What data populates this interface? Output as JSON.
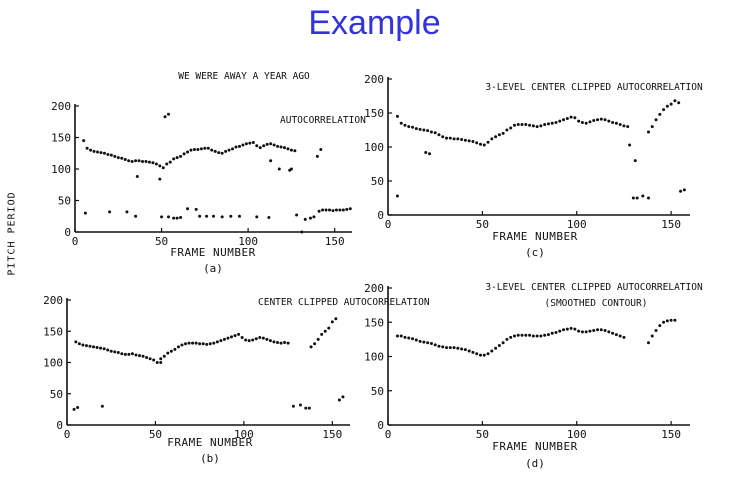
{
  "slide": {
    "title": "Example",
    "shared_ylabel": "PITCH PERIOD"
  },
  "chart_data": [
    {
      "type": "scatter",
      "panel_label": "(a)",
      "top_label": "WE WERE AWAY A YEAR AGO",
      "annotations": [
        "AUTOCORRELATION"
      ],
      "xlabel": "FRAME NUMBER",
      "xlim": [
        0,
        160
      ],
      "ylim": [
        0,
        200
      ],
      "xticks": [
        0,
        50,
        100,
        150
      ],
      "yticks": [
        0,
        50,
        100,
        150,
        200
      ],
      "series": [
        {
          "x": [
            5,
            7,
            9,
            11,
            13,
            15,
            17,
            19,
            21,
            23,
            25,
            27,
            29,
            31,
            33,
            35,
            37,
            39,
            41,
            43,
            45,
            47,
            49,
            51,
            53,
            55,
            57,
            59,
            61,
            63,
            65,
            67,
            69,
            71,
            73,
            75,
            77,
            79,
            81,
            83,
            85,
            87,
            89,
            91,
            93,
            95,
            97,
            99,
            101,
            103,
            105,
            107,
            109,
            111,
            113,
            115,
            117,
            119,
            121,
            123,
            125,
            127,
            6,
            20,
            30,
            35,
            50,
            54,
            57,
            59,
            61,
            65,
            70,
            72,
            76,
            80,
            85,
            90,
            95,
            105,
            112,
            128,
            131,
            133,
            136,
            138,
            141,
            143,
            145,
            147,
            149,
            151,
            153,
            155,
            157,
            159,
            52,
            54,
            140,
            142,
            113,
            36,
            49,
            118,
            124,
            125
          ],
          "y": [
            145,
            133,
            130,
            128,
            127,
            126,
            125,
            123,
            122,
            120,
            118,
            117,
            115,
            113,
            112,
            113,
            113,
            112,
            112,
            111,
            110,
            108,
            105,
            102,
            108,
            111,
            116,
            118,
            120,
            124,
            127,
            130,
            131,
            131,
            132,
            133,
            133,
            130,
            128,
            126,
            125,
            128,
            130,
            132,
            135,
            136,
            138,
            140,
            141,
            142,
            137,
            134,
            137,
            139,
            140,
            138,
            136,
            135,
            134,
            132,
            130,
            129,
            30,
            32,
            32,
            25,
            24,
            24,
            22,
            22,
            23,
            37,
            36,
            25,
            25,
            25,
            24,
            25,
            25,
            24,
            23,
            27,
            0,
            20,
            22,
            24,
            33,
            35,
            35,
            35,
            34,
            35,
            35,
            35,
            36,
            37,
            183,
            187,
            120,
            131,
            113,
            88,
            84,
            100,
            98,
            100
          ]
        }
      ]
    },
    {
      "type": "scatter",
      "panel_label": "(b)",
      "annotations": [
        "CENTER CLIPPED AUTOCORRELATION"
      ],
      "xlabel": "FRAME NUMBER",
      "xlim": [
        0,
        160
      ],
      "ylim": [
        0,
        200
      ],
      "xticks": [
        0,
        50,
        100,
        150
      ],
      "yticks": [
        0,
        50,
        100,
        150,
        200
      ],
      "series": [
        {
          "x": [
            5,
            7,
            9,
            11,
            13,
            15,
            17,
            19,
            21,
            23,
            25,
            27,
            29,
            31,
            33,
            35,
            37,
            39,
            41,
            43,
            45,
            47,
            49,
            51,
            53,
            55,
            57,
            59,
            61,
            63,
            65,
            67,
            69,
            71,
            73,
            75,
            77,
            79,
            81,
            83,
            85,
            87,
            89,
            91,
            93,
            95,
            97,
            99,
            101,
            103,
            105,
            107,
            109,
            111,
            113,
            115,
            117,
            119,
            121,
            123,
            125,
            138,
            140,
            142,
            144,
            146,
            148,
            150,
            152,
            4,
            6,
            20,
            53,
            128,
            132,
            135,
            137,
            154,
            156
          ],
          "y": [
            133,
            130,
            128,
            127,
            126,
            125,
            124,
            123,
            122,
            120,
            118,
            117,
            116,
            114,
            113,
            113,
            114,
            112,
            111,
            110,
            108,
            106,
            104,
            100,
            106,
            110,
            115,
            118,
            121,
            125,
            128,
            130,
            131,
            131,
            131,
            130,
            130,
            129,
            130,
            131,
            133,
            135,
            137,
            139,
            141,
            143,
            145,
            140,
            136,
            135,
            136,
            138,
            140,
            139,
            137,
            135,
            133,
            132,
            131,
            132,
            131,
            125,
            130,
            137,
            145,
            150,
            155,
            165,
            170,
            25,
            28,
            30,
            100,
            30,
            32,
            27,
            27,
            40,
            45
          ]
        }
      ]
    },
    {
      "type": "scatter",
      "panel_label": "(c)",
      "annotations": [
        "3-LEVEL CENTER CLIPPED AUTOCORRELATION"
      ],
      "xlabel": "FRAME NUMBER",
      "xlim": [
        0,
        160
      ],
      "ylim": [
        0,
        200
      ],
      "xticks": [
        0,
        50,
        100,
        150
      ],
      "yticks": [
        0,
        50,
        100,
        150,
        200
      ],
      "series": [
        {
          "x": [
            5,
            7,
            9,
            11,
            13,
            15,
            17,
            19,
            21,
            23,
            25,
            27,
            29,
            31,
            33,
            35,
            37,
            39,
            41,
            43,
            45,
            47,
            49,
            51,
            53,
            55,
            57,
            59,
            61,
            63,
            65,
            67,
            69,
            71,
            73,
            75,
            77,
            79,
            81,
            83,
            85,
            87,
            89,
            91,
            93,
            95,
            97,
            99,
            101,
            103,
            105,
            107,
            109,
            111,
            113,
            115,
            117,
            119,
            121,
            123,
            125,
            127,
            138,
            140,
            142,
            144,
            146,
            148,
            150,
            152,
            154,
            5,
            20,
            22,
            128,
            131,
            135,
            138,
            155,
            157,
            130,
            132
          ],
          "y": [
            145,
            135,
            132,
            130,
            129,
            127,
            126,
            125,
            124,
            122,
            121,
            118,
            115,
            113,
            113,
            112,
            112,
            111,
            110,
            109,
            108,
            106,
            104,
            103,
            107,
            112,
            115,
            118,
            120,
            125,
            128,
            132,
            133,
            133,
            133,
            132,
            131,
            130,
            131,
            133,
            134,
            135,
            136,
            138,
            140,
            142,
            144,
            143,
            138,
            136,
            135,
            137,
            139,
            140,
            141,
            140,
            138,
            136,
            135,
            133,
            131,
            130,
            122,
            130,
            140,
            148,
            155,
            160,
            163,
            168,
            165,
            28,
            92,
            90,
            103,
            80,
            28,
            25,
            35,
            37,
            25,
            25
          ]
        }
      ]
    },
    {
      "type": "scatter",
      "panel_label": "(d)",
      "annotations": [
        "3-LEVEL CENTER CLIPPED AUTOCORRELATION",
        "(SMOOTHED CONTOUR)"
      ],
      "xlabel": "FRAME NUMBER",
      "xlim": [
        0,
        160
      ],
      "ylim": [
        0,
        200
      ],
      "xticks": [
        0,
        50,
        100,
        150
      ],
      "yticks": [
        0,
        50,
        100,
        150,
        200
      ],
      "series": [
        {
          "x": [
            5,
            7,
            9,
            11,
            13,
            15,
            17,
            19,
            21,
            23,
            25,
            27,
            29,
            31,
            33,
            35,
            37,
            39,
            41,
            43,
            45,
            47,
            49,
            51,
            53,
            55,
            57,
            59,
            61,
            63,
            65,
            67,
            69,
            71,
            73,
            75,
            77,
            79,
            81,
            83,
            85,
            87,
            89,
            91,
            93,
            95,
            97,
            99,
            101,
            103,
            105,
            107,
            109,
            111,
            113,
            115,
            117,
            119,
            121,
            123,
            125,
            138,
            140,
            142,
            144,
            146,
            148,
            150,
            152
          ],
          "y": [
            130,
            130,
            128,
            127,
            126,
            124,
            122,
            121,
            120,
            119,
            117,
            115,
            114,
            113,
            113,
            113,
            112,
            111,
            110,
            108,
            106,
            104,
            102,
            102,
            104,
            108,
            112,
            116,
            120,
            125,
            128,
            130,
            131,
            131,
            131,
            131,
            130,
            130,
            130,
            131,
            132,
            134,
            135,
            137,
            139,
            140,
            141,
            140,
            137,
            136,
            136,
            137,
            138,
            139,
            139,
            138,
            136,
            134,
            132,
            130,
            128,
            120,
            130,
            138,
            145,
            150,
            152,
            153,
            153
          ]
        }
      ]
    }
  ]
}
